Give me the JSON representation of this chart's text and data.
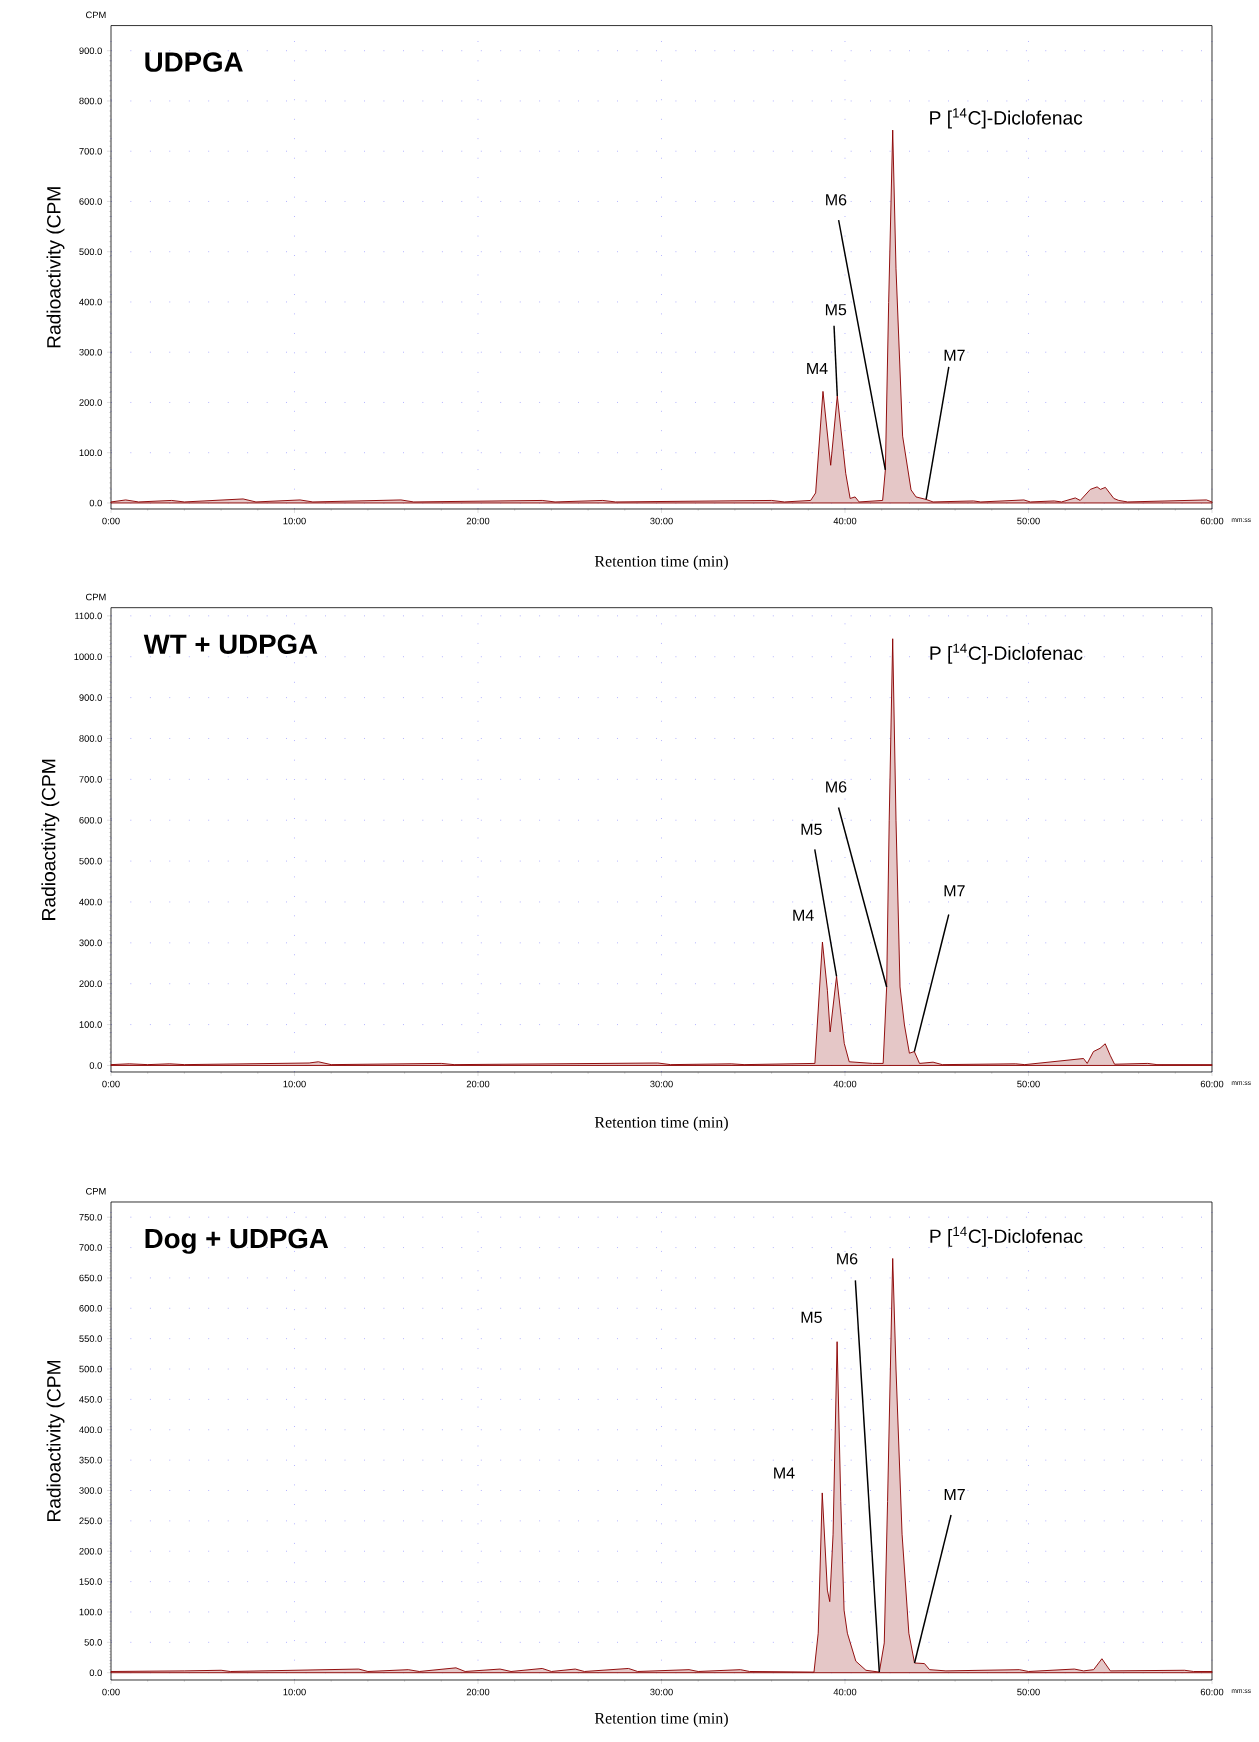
{
  "chart_data": [
    {
      "type": "area",
      "title": "UDPGA",
      "xlabel": "Retention time (min)",
      "ylabel": "Radioactivity (CPM",
      "grid": true,
      "xlim": [
        0,
        60
      ],
      "ylim": [
        -12,
        950
      ],
      "xticks": [
        {
          "value": 0,
          "label": "0:00"
        },
        {
          "value": 10,
          "label": "10:00"
        },
        {
          "value": 20,
          "label": "20:00"
        },
        {
          "value": 30,
          "label": "30:00"
        },
        {
          "value": 40,
          "label": "40:00"
        },
        {
          "value": 50,
          "label": "50:00"
        },
        {
          "value": 60,
          "label": "60:00"
        }
      ],
      "yticks": [
        {
          "value": 0,
          "label": "0.0"
        },
        {
          "value": 100,
          "label": "100.0"
        },
        {
          "value": 200,
          "label": "200.0"
        },
        {
          "value": 300,
          "label": "300.0"
        },
        {
          "value": 400,
          "label": "400.0"
        },
        {
          "value": 500,
          "label": "500.0"
        },
        {
          "value": 600,
          "label": "600.0"
        },
        {
          "value": 700,
          "label": "700.0"
        },
        {
          "value": 800,
          "label": "800.0"
        },
        {
          "value": 900,
          "label": "900.0"
        }
      ],
      "x": [
        0,
        0.8,
        1.5,
        3.3,
        4.0,
        7.2,
        7.9,
        10.3,
        11,
        15.8,
        16.5,
        23.5,
        24.2,
        26.8,
        27.5,
        36,
        36.7,
        38.13,
        38.4,
        38.8,
        39.22,
        39.58,
        40.04,
        40.28,
        40.55,
        40.77,
        42.05,
        42.2,
        42.38,
        42.6,
        42.78,
        43.14,
        43.6,
        43.87,
        44.42,
        44.8,
        47,
        47.4,
        49.75,
        50.1,
        51.4,
        51.8,
        52.55,
        52.82,
        53.37,
        53.74,
        53.92,
        54.19,
        54.65,
        54.92,
        55.4,
        59.7,
        60
      ],
      "series": [
        {
          "color": "#8b0000",
          "values": [
            2,
            6,
            2,
            5,
            2,
            8,
            2,
            6,
            2,
            6,
            2,
            5,
            2,
            5,
            2,
            5,
            2,
            5,
            20,
            222,
            75,
            213,
            59,
            9,
            12,
            2,
            5,
            66,
            399,
            742,
            466,
            133,
            26,
            12,
            7,
            2,
            4,
            2,
            6,
            2,
            4,
            2,
            10,
            5,
            27,
            32,
            27,
            31,
            9,
            5,
            2,
            6,
            2
          ]
        }
      ],
      "annotations": [
        "CPM",
        "mm:ss",
        {
          "text": "P [$^{14}$C]-Diclofenac",
          "x": 42.6,
          "y": 742
        },
        {
          "text": "M4",
          "x": 38.8,
          "y": 222
        },
        {
          "text": "M5",
          "x": 39.58,
          "y": 213
        },
        {
          "text": "M6",
          "x": 42.2,
          "y": 66
        },
        {
          "text": "M7",
          "x": 44.42,
          "y": 7
        }
      ]
    },
    {
      "type": "area",
      "title": "WT + UDPGA",
      "xlabel": "Retention time (min)",
      "ylabel": "Radioactivity (CPM",
      "grid": true,
      "xlim": [
        0,
        60
      ],
      "ylim": [
        -16,
        1120
      ],
      "xticks": [
        {
          "value": 0,
          "label": "0:00"
        },
        {
          "value": 10,
          "label": "10:00"
        },
        {
          "value": 20,
          "label": "20:00"
        },
        {
          "value": 30,
          "label": "30:00"
        },
        {
          "value": 40,
          "label": "40:00"
        },
        {
          "value": 50,
          "label": "50:00"
        },
        {
          "value": 60,
          "label": "60:00"
        }
      ],
      "yticks": [
        {
          "value": 0,
          "label": "0.0"
        },
        {
          "value": 100,
          "label": "100.0"
        },
        {
          "value": 200,
          "label": "200.0"
        },
        {
          "value": 300,
          "label": "300.0"
        },
        {
          "value": 400,
          "label": "400.0"
        },
        {
          "value": 500,
          "label": "500.0"
        },
        {
          "value": 600,
          "label": "600.0"
        },
        {
          "value": 700,
          "label": "700.0"
        },
        {
          "value": 800,
          "label": "800.0"
        },
        {
          "value": 900,
          "label": "900.0"
        },
        {
          "value": 1000,
          "label": "1000.0"
        },
        {
          "value": 1100,
          "label": "1100.0"
        }
      ],
      "x": [
        0,
        1,
        2,
        3.2,
        4,
        10.8,
        11.3,
        12,
        18,
        18.7,
        29.8,
        30.5,
        33.8,
        34.5,
        38.36,
        38.77,
        39.04,
        39.19,
        39.54,
        39.96,
        40.23,
        41.5,
        42.08,
        42.27,
        42.41,
        42.6,
        42.78,
        43.0,
        43.24,
        43.51,
        43.78,
        44.06,
        44.8,
        45.3,
        49.3,
        49.8,
        53.0,
        53.2,
        53.54,
        53.9,
        54.18,
        54.45,
        54.69,
        56.5,
        57,
        60
      ],
      "series": [
        {
          "color": "#8b0000",
          "values": [
            2,
            4,
            2,
            4,
            2,
            6,
            9,
            2,
            5,
            2,
            6,
            2,
            4,
            2,
            5,
            302,
            184,
            82,
            218,
            54,
            9,
            5,
            5,
            192,
            600,
            1044,
            600,
            192,
            99,
            30,
            34,
            5,
            8,
            2,
            4,
            2,
            17,
            5,
            34,
            42,
            53,
            25,
            3,
            5,
            2,
            2
          ]
        }
      ],
      "annotations": [
        "CPM",
        "mm:ss",
        {
          "text": "P [$^{14}$C]-Diclofenac",
          "x": 42.6,
          "y": 1044
        },
        {
          "text": "M4",
          "x": 38.77,
          "y": 302
        },
        {
          "text": "M5",
          "x": 39.54,
          "y": 218
        },
        {
          "text": "M6",
          "x": 42.27,
          "y": 192
        },
        {
          "text": "M7",
          "x": 43.78,
          "y": 34
        }
      ]
    },
    {
      "type": "area",
      "title": "Dog + UDPGA",
      "xlabel": "Retention time (min)",
      "ylabel": "Radioactivity (CPM",
      "grid": true,
      "xlim": [
        0,
        60
      ],
      "ylim": [
        -12,
        775
      ],
      "xticks": [
        {
          "value": 0,
          "label": "0:00"
        },
        {
          "value": 10,
          "label": "10:00"
        },
        {
          "value": 20,
          "label": "20:00"
        },
        {
          "value": 30,
          "label": "30:00"
        },
        {
          "value": 40,
          "label": "40:00"
        },
        {
          "value": 50,
          "label": "50:00"
        },
        {
          "value": 60,
          "label": "60:00"
        }
      ],
      "yticks": [
        {
          "value": 0,
          "label": "0.0"
        },
        {
          "value": 50,
          "label": "50.0"
        },
        {
          "value": 100,
          "label": "100.0"
        },
        {
          "value": 150,
          "label": "150.0"
        },
        {
          "value": 200,
          "label": "200.0"
        },
        {
          "value": 250,
          "label": "250.0"
        },
        {
          "value": 300,
          "label": "300.0"
        },
        {
          "value": 350,
          "label": "350.0"
        },
        {
          "value": 400,
          "label": "400.0"
        },
        {
          "value": 450,
          "label": "450.0"
        },
        {
          "value": 500,
          "label": "500.0"
        },
        {
          "value": 550,
          "label": "550.0"
        },
        {
          "value": 600,
          "label": "600.0"
        },
        {
          "value": 650,
          "label": "650.0"
        },
        {
          "value": 700,
          "label": "700.0"
        },
        {
          "value": 750,
          "label": "750.0"
        }
      ],
      "x": [
        0,
        4,
        6,
        6.5,
        13.5,
        14,
        16.2,
        16.8,
        18.8,
        19.3,
        21.2,
        21.8,
        23.5,
        24,
        25.3,
        25.8,
        28.2,
        28.7,
        31.5,
        32,
        34.3,
        34.8,
        38.31,
        38.54,
        38.76,
        39.04,
        39.17,
        39.35,
        39.57,
        39.77,
        39.95,
        40.13,
        40.59,
        41.14,
        41.87,
        42.14,
        42.32,
        42.6,
        42.78,
        43.11,
        43.48,
        43.79,
        44.33,
        44.61,
        45.5,
        49.5,
        50,
        52.5,
        53,
        53.55,
        54.0,
        54.46,
        58.5,
        59,
        60
      ],
      "series": [
        {
          "color": "#8b0000",
          "values": [
            2,
            3,
            4,
            2,
            6,
            2,
            5,
            2,
            8,
            2,
            6,
            2,
            7,
            2,
            6,
            2,
            7,
            2,
            5,
            2,
            5,
            2,
            1,
            65,
            296,
            136,
            117,
            228,
            545,
            282,
            103,
            65,
            19,
            4,
            1,
            49,
            282,
            682,
            500,
            228,
            65,
            16,
            15,
            5,
            3,
            5,
            2,
            6,
            3,
            5,
            23,
            3,
            4,
            2,
            2
          ]
        }
      ],
      "annotations": [
        "CPM",
        "mm:ss",
        {
          "text": "P [$^{14}$C]-Diclofenac",
          "x": 42.6,
          "y": 682
        },
        {
          "text": "M4",
          "x": 38.76,
          "y": 296
        },
        {
          "text": "M5",
          "x": 39.57,
          "y": 545
        },
        {
          "text": "M6",
          "x": 41.87,
          "y": 1
        },
        {
          "text": "M7",
          "x": 43.79,
          "y": 16
        }
      ]
    }
  ]
}
